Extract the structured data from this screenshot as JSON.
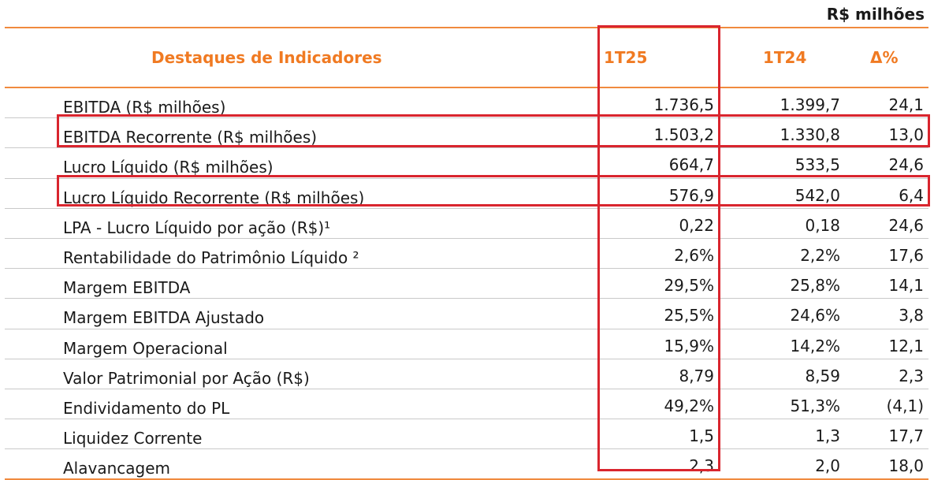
{
  "unit_label": "R$ milhões",
  "header": {
    "label": "Destaques de Indicadores",
    "col1": "1T25",
    "col2": "1T24",
    "col3": "Δ%"
  },
  "rows": [
    {
      "label": "EBITDA  (R$ milhões)",
      "v1": "1.736,5",
      "v2": "1.399,7",
      "v3": "24,1"
    },
    {
      "label": "EBITDA  Recorrente (R$ milhões)",
      "v1": "1.503,2",
      "v2": "1.330,8",
      "v3": "13,0"
    },
    {
      "label": "Lucro Líquido (R$ milhões)",
      "v1": "664,7",
      "v2": "533,5",
      "v3": "24,6"
    },
    {
      "label": "Lucro Líquido Recorrente (R$ milhões)",
      "v1": "576,9",
      "v2": "542,0",
      "v3": "6,4"
    },
    {
      "label": "LPA - Lucro Líquido por ação (R$)¹",
      "v1": "0,22",
      "v2": "0,18",
      "v3": "24,6"
    },
    {
      "label": "Rentabilidade do Patrimônio Líquido ²",
      "v1": "2,6%",
      "v2": "2,2%",
      "v3": "17,6"
    },
    {
      "label": "Margem EBITDA",
      "v1": "29,5%",
      "v2": "25,8%",
      "v3": "14,1"
    },
    {
      "label": "Margem EBITDA Ajustado",
      "v1": "25,5%",
      "v2": "24,6%",
      "v3": "3,8"
    },
    {
      "label": "Margem Operacional",
      "v1": "15,9%",
      "v2": "14,2%",
      "v3": "12,1"
    },
    {
      "label": "Valor Patrimonial por Ação (R$)",
      "v1": "8,79",
      "v2": "8,59",
      "v3": "2,3"
    },
    {
      "label": "Endividamento do PL",
      "v1": "49,2%",
      "v2": "51,3%",
      "v3": "(4,1)"
    },
    {
      "label": "Liquidez Corrente",
      "v1": "1,5",
      "v2": "1,3",
      "v3": "17,7"
    },
    {
      "label": "Alavancagem",
      "v1": "2,3",
      "v2": "2,0",
      "v3": "18,0"
    }
  ],
  "colors": {
    "accent": "#f07a22",
    "highlight": "#d9252e"
  }
}
